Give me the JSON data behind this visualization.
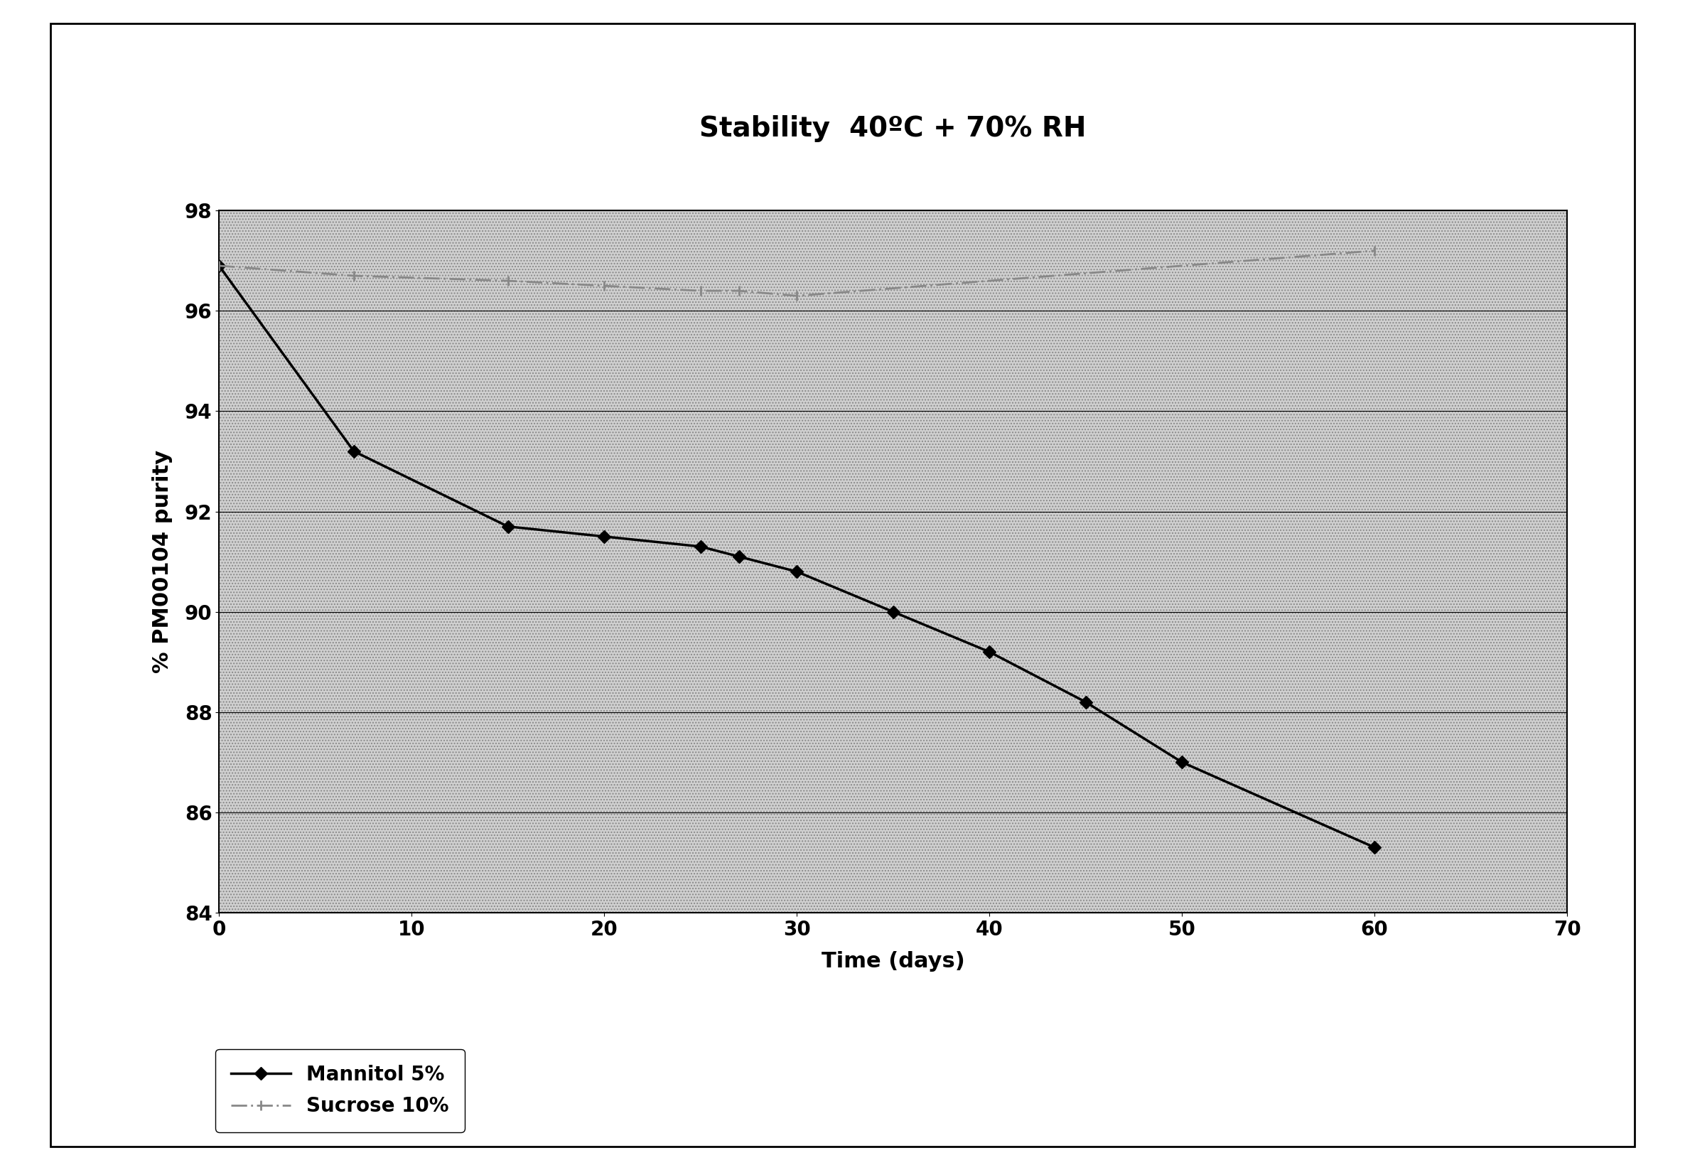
{
  "title": "Stability  40ºC + 70% RH",
  "xlabel": "Time (days)",
  "ylabel": "% PM00104 purity",
  "xlim": [
    0,
    70
  ],
  "ylim": [
    84,
    98
  ],
  "yticks": [
    84,
    86,
    88,
    90,
    92,
    94,
    96,
    98
  ],
  "xticks": [
    0,
    10,
    20,
    30,
    40,
    50,
    60,
    70
  ],
  "mannitol_x": [
    0,
    7,
    15,
    20,
    25,
    27,
    30,
    35,
    40,
    45,
    50,
    60
  ],
  "mannitol_y": [
    96.9,
    93.2,
    91.7,
    91.5,
    91.3,
    91.1,
    90.8,
    90.0,
    89.2,
    88.2,
    87.0,
    85.3
  ],
  "sucrose_x": [
    0,
    7,
    15,
    20,
    25,
    27,
    30,
    60
  ],
  "sucrose_y": [
    96.9,
    96.7,
    96.6,
    96.5,
    96.4,
    96.4,
    96.3,
    97.2
  ],
  "mannitol_color": "#000000",
  "sucrose_color": "#888888",
  "hatch_color": "#aaaaaa",
  "grid_color": "#000000",
  "legend_labels": [
    "Mannitol 5%",
    "Sucrose 10%"
  ],
  "title_fontsize": 28,
  "axis_label_fontsize": 22,
  "tick_fontsize": 20,
  "legend_fontsize": 20,
  "outer_box_color": "#000000"
}
